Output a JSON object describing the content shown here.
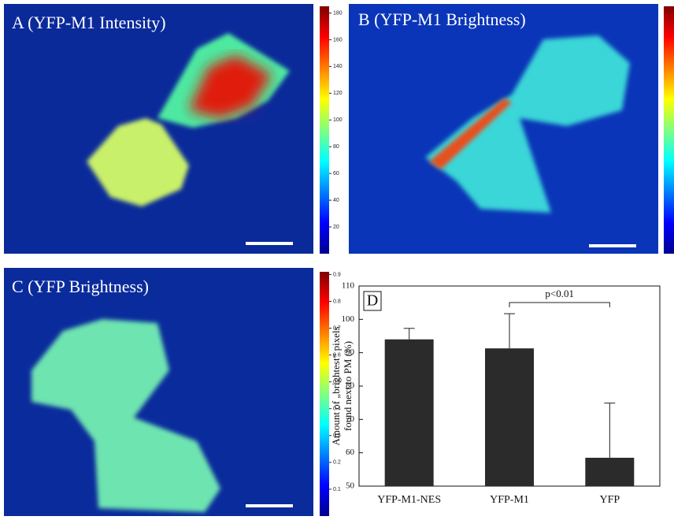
{
  "panels": [
    {
      "label": "A (YFP-M1 Intensity)",
      "colorbar": {
        "lim": [
          0,
          185
        ],
        "ticks": [
          20,
          40,
          60,
          80,
          100,
          120,
          140,
          160,
          180
        ]
      }
    },
    {
      "label": "B (YFP-M1 Brightness)"
    },
    {
      "label": "C (YFP Brightness)",
      "colorbar": {
        "lim": [
          0,
          0.91
        ],
        "ticks": [
          0.1,
          0.2,
          0.3,
          0.4,
          0.5,
          0.6,
          0.7,
          0.8,
          0.9
        ]
      }
    }
  ],
  "chart_data": {
    "type": "bar",
    "panel_label": "D",
    "ylabel": [
      "Amount of „brightest“ pixels",
      "found next to PM (%)"
    ],
    "categories": [
      "YFP-M1-NES",
      "YFP-M1",
      "YFP"
    ],
    "values": [
      94,
      91.3,
      58.5
    ],
    "errors": [
      3.3,
      10.4,
      16.4
    ],
    "color": "#2b2b2b",
    "ylim": [
      50,
      110
    ],
    "yticks": [
      50,
      60,
      70,
      80,
      90,
      100,
      110
    ],
    "annotation": "p<0.01"
  }
}
